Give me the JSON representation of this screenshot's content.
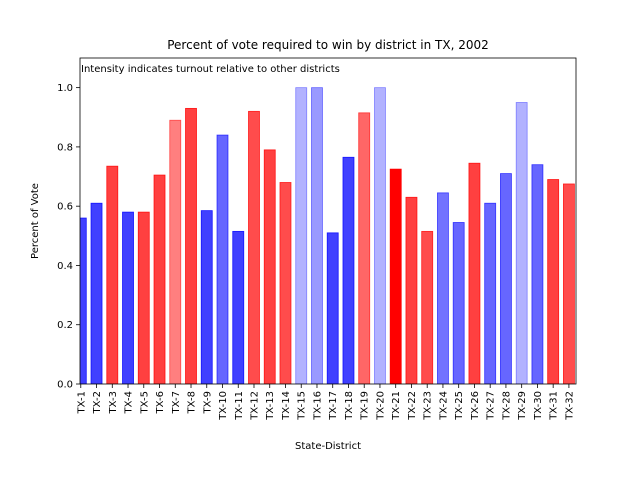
{
  "chart_data": {
    "type": "bar",
    "title": "Percent of vote required to win by district in TX, 2002",
    "xlabel": "State-District",
    "ylabel": "Percent of Vote",
    "annotation": "Intensity indicates turnout relative to other districts",
    "ylim": [
      0,
      1.1
    ],
    "yticks": [
      "0.0",
      "0.2",
      "0.4",
      "0.6",
      "0.8",
      "1.0"
    ],
    "ytick_values": [
      0,
      0.2,
      0.4,
      0.6,
      0.8,
      1.0
    ],
    "grid": false,
    "colors": {
      "red": "#ff0000",
      "blue": "#0000ff"
    },
    "categories": [
      "TX-1",
      "TX-2",
      "TX-3",
      "TX-4",
      "TX-5",
      "TX-6",
      "TX-7",
      "TX-8",
      "TX-9",
      "TX-10",
      "TX-11",
      "TX-12",
      "TX-13",
      "TX-14",
      "TX-15",
      "TX-16",
      "TX-17",
      "TX-18",
      "TX-19",
      "TX-20",
      "TX-21",
      "TX-22",
      "TX-23",
      "TX-24",
      "TX-25",
      "TX-26",
      "TX-27",
      "TX-28",
      "TX-29",
      "TX-30",
      "TX-31",
      "TX-32"
    ],
    "values": [
      0.56,
      0.61,
      0.735,
      0.58,
      0.58,
      0.705,
      0.89,
      0.93,
      0.585,
      0.84,
      0.515,
      0.92,
      0.79,
      0.68,
      1.0,
      1.0,
      0.51,
      0.765,
      0.915,
      1.0,
      0.725,
      0.63,
      0.515,
      0.645,
      0.545,
      0.745,
      0.61,
      0.71,
      0.95,
      0.74,
      0.69,
      0.675
    ],
    "bar_colors": [
      "blue",
      "blue",
      "red",
      "blue",
      "red",
      "red",
      "red",
      "red",
      "blue",
      "blue",
      "blue",
      "red",
      "red",
      "red",
      "blue",
      "blue",
      "blue",
      "blue",
      "red",
      "blue",
      "red",
      "red",
      "red",
      "blue",
      "blue",
      "red",
      "blue",
      "blue",
      "blue",
      "blue",
      "red",
      "red"
    ],
    "intensity": [
      0.75,
      0.75,
      0.75,
      0.75,
      0.75,
      0.75,
      0.5,
      0.75,
      0.75,
      0.6,
      0.75,
      0.7,
      0.75,
      0.7,
      0.3,
      0.4,
      0.75,
      0.75,
      0.6,
      0.3,
      1.0,
      0.75,
      0.7,
      0.55,
      0.6,
      0.75,
      0.6,
      0.6,
      0.3,
      0.6,
      0.75,
      0.7
    ]
  }
}
